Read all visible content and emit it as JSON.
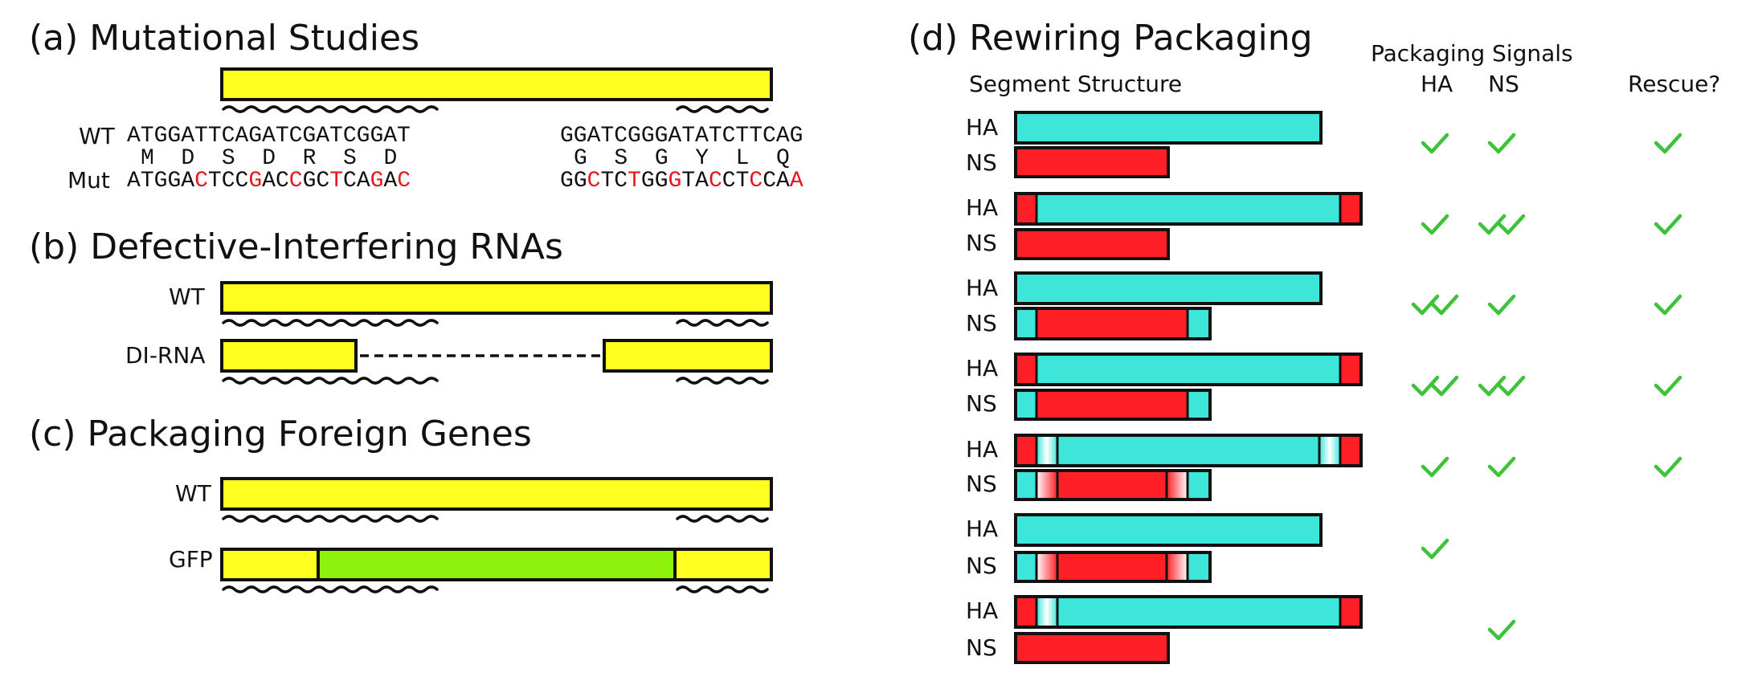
{
  "panel_a": {
    "title": "(a) Mutational Studies",
    "wt_label": "WT",
    "mut_label": "Mut",
    "wt_seq_left": "ATGGATTCAGATCGATCGGAT",
    "aa_left": "M  D  S  D  R  S  D",
    "mut_seq_left": "ATGGACTCCGACCGCTCAGAC",
    "mut_red_left": [
      5,
      9,
      12,
      15,
      18,
      20
    ],
    "wt_seq_right": "GGATCGGGATATCTTCAG",
    "aa_right": "G  S  G  Y  L  Q",
    "mut_seq_right": "GGCTCTGGGTACCTCCAA",
    "mut_red_right": [
      2,
      5,
      8,
      11,
      14,
      17
    ]
  },
  "panel_b": {
    "title": "(b) Defective-Interfering RNAs",
    "wt_label": "WT",
    "di_label": "DI-RNA"
  },
  "panel_c": {
    "title": "(c) Packaging Foreign Genes",
    "wt_label": "WT",
    "gfp_label": "GFP"
  },
  "panel_d": {
    "title": "(d) Rewiring Packaging",
    "segment_header": "Segment Structure",
    "signals_header": "Packaging Signals",
    "ha_header": "HA",
    "ns_header": "NS",
    "rescue_header": "Rescue?",
    "ha_label": "HA",
    "ns_label": "NS",
    "rows": [
      {
        "ha_checks": 1,
        "ns_checks": 1,
        "rescue": true
      },
      {
        "ha_checks": 1,
        "ns_checks": 2,
        "rescue": true
      },
      {
        "ha_checks": 2,
        "ns_checks": 1,
        "rescue": true
      },
      {
        "ha_checks": 2,
        "ns_checks": 2,
        "rescue": true
      },
      {
        "ha_checks": 1,
        "ns_checks": 1,
        "rescue": true
      },
      {
        "ha_checks": 1,
        "ns_checks": 0,
        "rescue": false
      },
      {
        "ha_checks": 0,
        "ns_checks": 1,
        "rescue": false
      }
    ]
  },
  "colors": {
    "yellow": "#ffff1f",
    "cyan": "#3de6d9",
    "red": "#ff1f26",
    "green": "#8ff20c",
    "check": "#3dc23a",
    "mutation": "#e8161b"
  }
}
